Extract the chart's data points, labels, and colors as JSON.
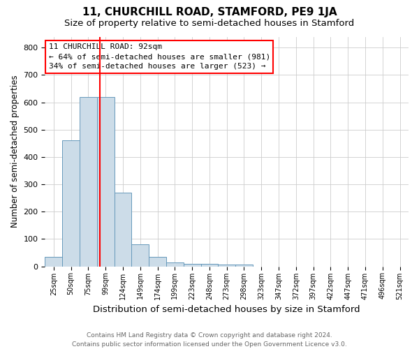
{
  "title": "11, CHURCHILL ROAD, STAMFORD, PE9 1JA",
  "subtitle": "Size of property relative to semi-detached houses in Stamford",
  "xlabel": "Distribution of semi-detached houses by size in Stamford",
  "ylabel": "Number of semi-detached properties",
  "footer_line1": "Contains HM Land Registry data © Crown copyright and database right 2024.",
  "footer_line2": "Contains public sector information licensed under the Open Government Licence v3.0.",
  "annotation_title": "11 CHURCHILL ROAD: 92sqm",
  "annotation_line2": "← 64% of semi-detached houses are smaller (981)",
  "annotation_line3": "34% of semi-detached houses are larger (523) →",
  "bar_labels": [
    "25sqm",
    "50sqm",
    "75sqm",
    "99sqm",
    "124sqm",
    "149sqm",
    "174sqm",
    "199sqm",
    "223sqm",
    "248sqm",
    "273sqm",
    "298sqm",
    "323sqm",
    "347sqm",
    "372sqm",
    "397sqm",
    "422sqm",
    "447sqm",
    "471sqm",
    "496sqm",
    "521sqm"
  ],
  "bar_values": [
    35,
    460,
    620,
    620,
    270,
    82,
    35,
    15,
    10,
    10,
    7,
    7,
    0,
    0,
    0,
    0,
    0,
    0,
    0,
    0,
    0
  ],
  "bar_color": "#ccdce8",
  "bar_edgecolor": "#6699bb",
  "bar_linewidth": 0.7,
  "vline_color": "red",
  "vline_linewidth": 1.5,
  "vline_x": 2.68,
  "ylim": [
    0,
    840
  ],
  "yticks": [
    0,
    100,
    200,
    300,
    400,
    500,
    600,
    700,
    800
  ],
  "grid_color": "#cccccc",
  "background_color": "#ffffff",
  "annotation_box_color": "white",
  "annotation_box_edgecolor": "red",
  "title_fontsize": 11,
  "subtitle_fontsize": 9.5,
  "xlabel_fontsize": 9.5,
  "ylabel_fontsize": 8.5,
  "tick_fontsize": 7,
  "annotation_fontsize": 8,
  "footer_fontsize": 6.5
}
